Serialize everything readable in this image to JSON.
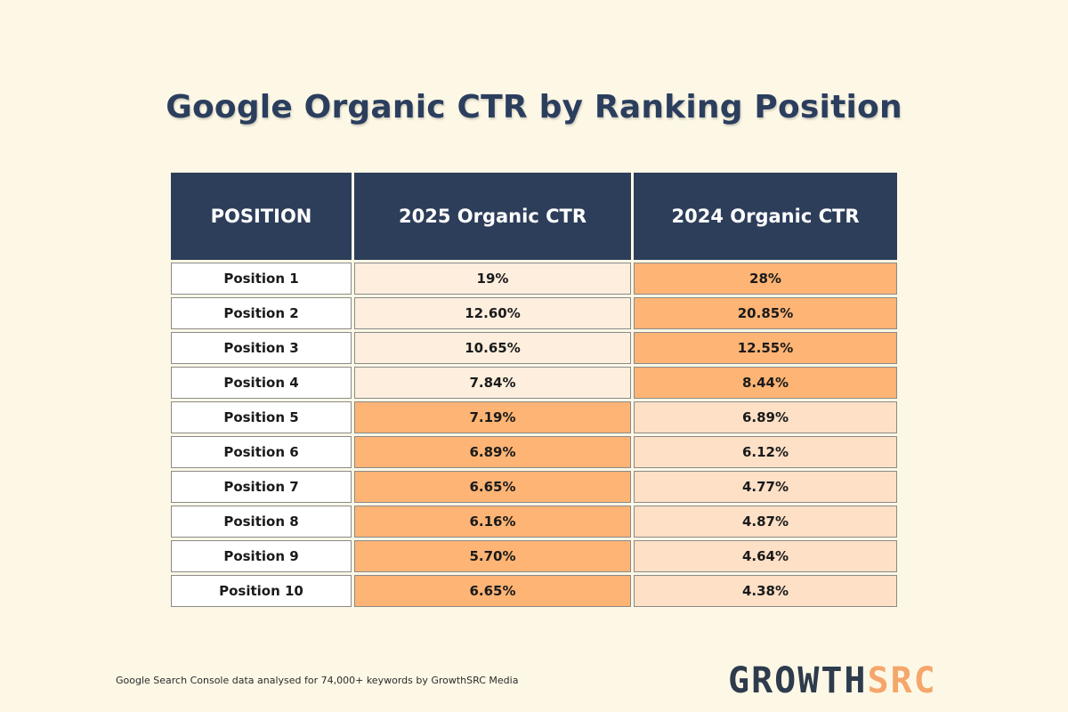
{
  "title": "Google Organic CTR by Ranking Position",
  "colors": {
    "header_bg": "#2d3e5a",
    "light_cell": "#fdeede",
    "mid_cell": "#fde0c6",
    "strong_cell": "#fdb475",
    "logo_dark": "#2e3b4d",
    "logo_accent": "#f5a66b"
  },
  "chart_data": {
    "type": "table",
    "title": "Google Organic CTR by Ranking Position",
    "columns": [
      "POSITION",
      "2025 Organic CTR",
      "2024 Organic CTR"
    ],
    "rows": [
      {
        "position": "Position 1",
        "ctr_2025": "19%",
        "ctr_2024": "28%",
        "hl_2025": "light",
        "hl_2024": "strong"
      },
      {
        "position": "Position 2",
        "ctr_2025": "12.60%",
        "ctr_2024": "20.85%",
        "hl_2025": "light",
        "hl_2024": "strong"
      },
      {
        "position": "Position 3",
        "ctr_2025": "10.65%",
        "ctr_2024": "12.55%",
        "hl_2025": "light",
        "hl_2024": "strong"
      },
      {
        "position": "Position 4",
        "ctr_2025": "7.84%",
        "ctr_2024": "8.44%",
        "hl_2025": "light",
        "hl_2024": "strong"
      },
      {
        "position": "Position 5",
        "ctr_2025": "7.19%",
        "ctr_2024": "6.89%",
        "hl_2025": "strong",
        "hl_2024": "mid"
      },
      {
        "position": "Position 6",
        "ctr_2025": "6.89%",
        "ctr_2024": "6.12%",
        "hl_2025": "strong",
        "hl_2024": "mid"
      },
      {
        "position": "Position 7",
        "ctr_2025": "6.65%",
        "ctr_2024": "4.77%",
        "hl_2025": "strong",
        "hl_2024": "mid"
      },
      {
        "position": "Position 8",
        "ctr_2025": "6.16%",
        "ctr_2024": "4.87%",
        "hl_2025": "strong",
        "hl_2024": "mid"
      },
      {
        "position": "Position 9",
        "ctr_2025": "5.70%",
        "ctr_2024": "4.64%",
        "hl_2025": "strong",
        "hl_2024": "mid"
      },
      {
        "position": "Position 10",
        "ctr_2025": "6.65%",
        "ctr_2024": "4.38%",
        "hl_2025": "strong",
        "hl_2024": "mid"
      }
    ]
  },
  "footnote": "Google Search Console data analysed for 74,000+ keywords by GrowthSRC Media",
  "logo": {
    "part1": "GROWTH",
    "part2": "SRC"
  }
}
